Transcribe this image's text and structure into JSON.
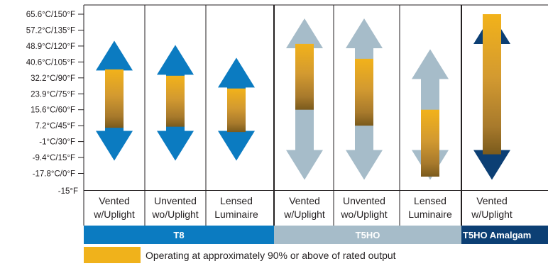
{
  "chart_data": {
    "type": "range-bar",
    "y_tick_labels": [
      "65.6°C/150°F",
      "57.2°C/135°F",
      "48.9°C/120°F",
      "40.6°C/105°F",
      "32.2°C/90°F",
      "23.9°C/75°F",
      "15.6°C/60°F",
      "7.2°C/45°F",
      "-1°C/30°F",
      "-9.4°C/15°F",
      "-17.8°C/0°F",
      "-15°F"
    ],
    "y_ticks_F": [
      150,
      135,
      120,
      105,
      90,
      75,
      60,
      45,
      30,
      15,
      0,
      -15
    ],
    "ylim_F": [
      -15,
      155
    ],
    "groups": [
      {
        "label": "T8",
        "color": "#0b7bc1",
        "columns": [
          0,
          1,
          2
        ]
      },
      {
        "label": "T5HO",
        "color": "#a6bcc9",
        "columns": [
          3,
          4,
          5
        ]
      },
      {
        "label": "T5HO Amalgam",
        "color": "#0c3f74",
        "columns": [
          6
        ]
      }
    ],
    "columns": [
      {
        "label_line1": "Vented",
        "label_line2": "w/Uplight",
        "arrow_color": "#0b7bc1",
        "arrow_low_F": 12,
        "arrow_high_F": 125,
        "high_output_low_F": 43,
        "high_output_high_F": 98
      },
      {
        "label_line1": "Unvented",
        "label_line2": "wo/Uplight",
        "arrow_color": "#0b7bc1",
        "arrow_low_F": 12,
        "arrow_high_F": 121,
        "high_output_low_F": 44,
        "high_output_high_F": 92
      },
      {
        "label_line1": "Lensed",
        "label_line2": "Luminaire",
        "arrow_color": "#0b7bc1",
        "arrow_low_F": 12,
        "arrow_high_F": 109,
        "high_output_low_F": 39,
        "high_output_high_F": 80
      },
      {
        "label_line1": "Vented",
        "label_line2": "w/Uplight",
        "arrow_color": "#a6bcc9",
        "arrow_low_F": -6,
        "arrow_high_F": 146,
        "high_output_low_F": 60,
        "high_output_high_F": 122
      },
      {
        "label_line1": "Unvented",
        "label_line2": "wo/Uplight",
        "arrow_color": "#a6bcc9",
        "arrow_low_F": -6,
        "arrow_high_F": 146,
        "high_output_low_F": 45,
        "high_output_high_F": 108
      },
      {
        "label_line1": "Lensed",
        "label_line2": "Luminaire",
        "arrow_color": "#a6bcc9",
        "arrow_low_F": -6,
        "arrow_high_F": 117,
        "high_output_low_F": -3,
        "high_output_high_F": 60
      },
      {
        "label_line1": "Vented",
        "label_line2": "w/Uplight",
        "arrow_color": "#0c3f74",
        "arrow_low_F": -6,
        "arrow_high_F": 150,
        "high_output_low_F": 18,
        "high_output_high_F": 150
      }
    ],
    "legend": {
      "text": "Operating at approximately 90% or above of rated output",
      "color": "#f0b21b"
    },
    "grid": false
  }
}
